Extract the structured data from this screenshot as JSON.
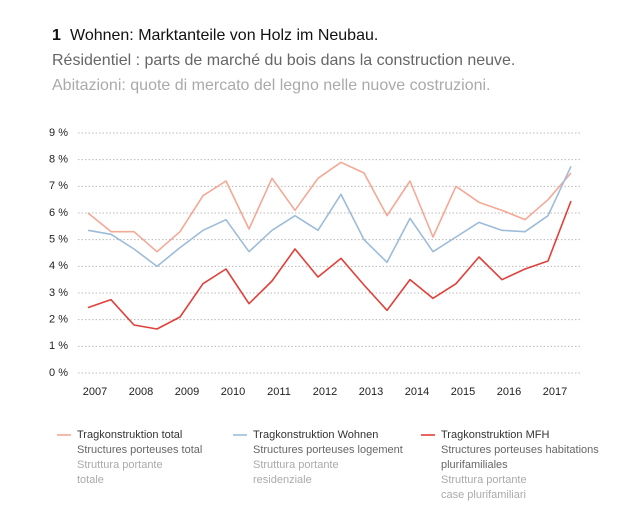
{
  "chart_data": {
    "type": "line",
    "number": "1",
    "title": "Wohnen: Marktanteile von Holz im Neubau.",
    "subtitle_fr": "Résidentiel : parts de marché du bois dans la construction neuve.",
    "subtitle_it": "Abitazioni: quote di mercato del legno nelle nuove costruzioni.",
    "categories": [
      "2007",
      null,
      "2008",
      null,
      "2009",
      null,
      "2010",
      null,
      "2011",
      null,
      "2012",
      null,
      "2013",
      null,
      "2014",
      null,
      "2015",
      null,
      "2016",
      null,
      "2017",
      null
    ],
    "ylim": [
      0,
      9
    ],
    "yticks": [
      {
        "value": 0,
        "label": "0 %"
      },
      {
        "value": 1,
        "label": "1 %"
      },
      {
        "value": 2,
        "label": "2 %"
      },
      {
        "value": 3,
        "label": "3 %"
      },
      {
        "value": 4,
        "label": "4 %"
      },
      {
        "value": 5,
        "label": "5 %"
      },
      {
        "value": 6,
        "label": "6 %"
      },
      {
        "value": 7,
        "label": "7 %"
      },
      {
        "value": 8,
        "label": "8 %"
      },
      {
        "value": 9,
        "label": "9 %"
      }
    ],
    "grid": true,
    "series": [
      {
        "name": "Tragkonstruktion total",
        "name_fr": "Structures porteuses total",
        "name_it": "Struttura portante totale",
        "color": "#f4a896",
        "values": [
          6.0,
          5.3,
          5.3,
          4.55,
          5.3,
          6.65,
          7.2,
          5.4,
          7.3,
          6.1,
          7.3,
          7.9,
          7.5,
          5.9,
          7.2,
          5.1,
          7.0,
          6.4,
          6.1,
          5.75,
          6.5,
          7.5
        ]
      },
      {
        "name": "Tragkonstruktion Wohnen",
        "name_fr": "Structures porteuses logement",
        "name_it": "Struttura portante residenziale",
        "color": "#9dbcd9",
        "values": [
          5.35,
          5.2,
          4.65,
          4.0,
          4.7,
          5.35,
          5.75,
          4.55,
          5.35,
          5.9,
          5.35,
          6.7,
          5.0,
          4.15,
          5.8,
          4.55,
          5.1,
          5.65,
          5.35,
          5.3,
          5.9,
          7.75
        ]
      },
      {
        "name": "Tragkonstruktion MFH",
        "name_fr": "Structures porteuses habitations plurifamiliales",
        "name_it": "Struttura portante case plurifamiliari",
        "color": "#e0403a",
        "values": [
          2.45,
          2.75,
          1.8,
          1.65,
          2.1,
          3.35,
          3.9,
          2.6,
          3.45,
          4.65,
          3.6,
          4.3,
          3.3,
          2.35,
          3.5,
          2.8,
          3.35,
          4.35,
          3.5,
          3.9,
          4.2,
          6.45
        ]
      }
    ]
  }
}
